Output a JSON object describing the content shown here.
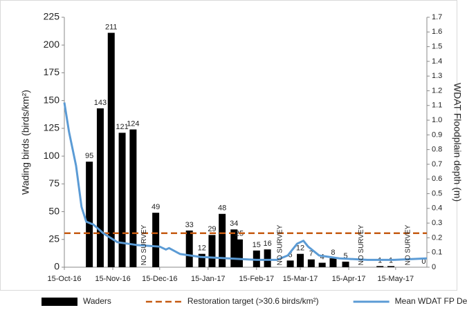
{
  "chart_data": {
    "type": "bar",
    "y_label": "Wading birds (birds/km²)",
    "y2_label": "WDAT Floodplain depth (m)",
    "xlim": [
      0,
      232
    ],
    "xticks": [
      {
        "value": 0,
        "label": "15-Oct-16"
      },
      {
        "value": 31,
        "label": "15-Nov-16"
      },
      {
        "value": 61,
        "label": "15-Dec-16"
      },
      {
        "value": 92,
        "label": "15-Jan-17"
      },
      {
        "value": 123,
        "label": "15-Feb-17"
      },
      {
        "value": 151,
        "label": "15-Mar-17"
      },
      {
        "value": 182,
        "label": "15-Apr-17"
      },
      {
        "value": 212,
        "label": "15-May-17"
      }
    ],
    "ylim": [
      0,
      225
    ],
    "yticks": [
      0,
      25,
      50,
      75,
      100,
      125,
      150,
      175,
      200,
      225
    ],
    "y2lim": [
      0,
      1.7
    ],
    "y2ticks": [
      0,
      0.1,
      0.2,
      0.3,
      0.4,
      0.5,
      0.6,
      0.7,
      0.8,
      0.9,
      {
        "value": 1,
        "label": "1.0"
      },
      1.1,
      1.2,
      1.3,
      1.4,
      1.5,
      1.6,
      1.7
    ],
    "series": [
      {
        "name": "Waders",
        "type": "bar",
        "color": "#000000",
        "x": [
          16,
          23,
          30,
          37,
          44,
          58.5,
          80,
          88,
          94.5,
          101,
          108.6,
          112,
          123,
          130,
          144.6,
          151,
          158,
          165,
          172,
          180,
          202,
          209,
          230
        ],
        "values": [
          95,
          143,
          211,
          121,
          124,
          49,
          33,
          12,
          29,
          48,
          34,
          25,
          15,
          16,
          6,
          12,
          7,
          4,
          8,
          5,
          1,
          1,
          0
        ]
      },
      {
        "name": "Restoration target (>30.6 birds/km²)",
        "type": "hline",
        "color": "#c55a11",
        "value": 30.6
      },
      {
        "name": "Mean WDAT FP Depth",
        "type": "line",
        "axis": "y2",
        "color": "#5b9bd5",
        "x": [
          0,
          3,
          7.5,
          11,
          14,
          18.6,
          25,
          34,
          47,
          61,
          65,
          67,
          74,
          87,
          105,
          123,
          136,
          143,
          149,
          153,
          156,
          163,
          176,
          194,
          211,
          232
        ],
        "values": [
          1.12,
          0.92,
          0.69,
          0.41,
          0.31,
          0.29,
          0.23,
          0.17,
          0.15,
          0.14,
          0.12,
          0.13,
          0.09,
          0.07,
          0.06,
          0.05,
          0.05,
          0.08,
          0.16,
          0.18,
          0.14,
          0.08,
          0.06,
          0.05,
          0.05,
          0.06
        ]
      }
    ],
    "annotations": [
      {
        "x": 51,
        "text": "NO SURVEY"
      },
      {
        "x": 138,
        "text": "NO SURVEY"
      },
      {
        "x": 190,
        "text": "NO SURVEY"
      },
      {
        "x": 220,
        "text": "NO SURVEY"
      }
    ]
  }
}
